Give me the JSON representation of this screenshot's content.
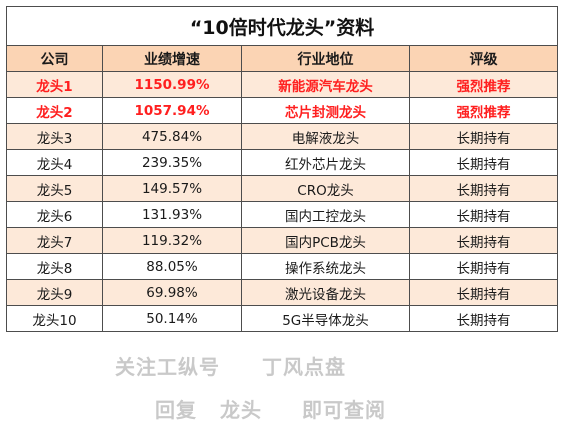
{
  "title": "“10倍时代龙头”资料",
  "headers": [
    "公司",
    "业绩增速",
    "行业地位",
    "评级"
  ],
  "rows": [
    {
      "company": "龙头1",
      "growth": "1150.99%",
      "position": "新能源汽车龙头",
      "rating": "强烈推荐",
      "highlight": true
    },
    {
      "company": "龙头2",
      "growth": "1057.94%",
      "position": "芯片封测龙头",
      "rating": "强烈推荐",
      "highlight": true
    },
    {
      "company": "龙头3",
      "growth": "475.84%",
      "position": "电解液龙头",
      "rating": "长期持有",
      "highlight": false
    },
    {
      "company": "龙头4",
      "growth": "239.35%",
      "position": "红外芯片龙头",
      "rating": "长期持有",
      "highlight": false
    },
    {
      "company": "龙头5",
      "growth": "149.57%",
      "position": "CRO龙头",
      "rating": "长期持有",
      "highlight": false
    },
    {
      "company": "龙头6",
      "growth": "131.93%",
      "position": "国内工控龙头",
      "rating": "长期持有",
      "highlight": false
    },
    {
      "company": "龙头7",
      "growth": "119.32%",
      "position": "国内PCB龙头",
      "rating": "长期持有",
      "highlight": false
    },
    {
      "company": "龙头8",
      "growth": "88.05%",
      "position": "操作系统龙头",
      "rating": "长期持有",
      "highlight": false
    },
    {
      "company": "龙头9",
      "growth": "69.98%",
      "position": "激光设备龙头",
      "rating": "长期持有",
      "highlight": false
    },
    {
      "company": "龙头10",
      "growth": "50.14%",
      "position": "5G半导体龙头",
      "rating": "长期持有",
      "highlight": false
    }
  ],
  "footer": {
    "line1_a": "关注工纵号",
    "line1_b": "丁风点盘",
    "line2_a": "回复",
    "line2_b": "龙头",
    "line2_c": "即可查阅"
  },
  "colors": {
    "header_bg": "#fbd4b4",
    "alt_row_bg": "#fde9d9",
    "highlight_text": "#ff1f1f",
    "footer_text": "#c9c9c9"
  }
}
